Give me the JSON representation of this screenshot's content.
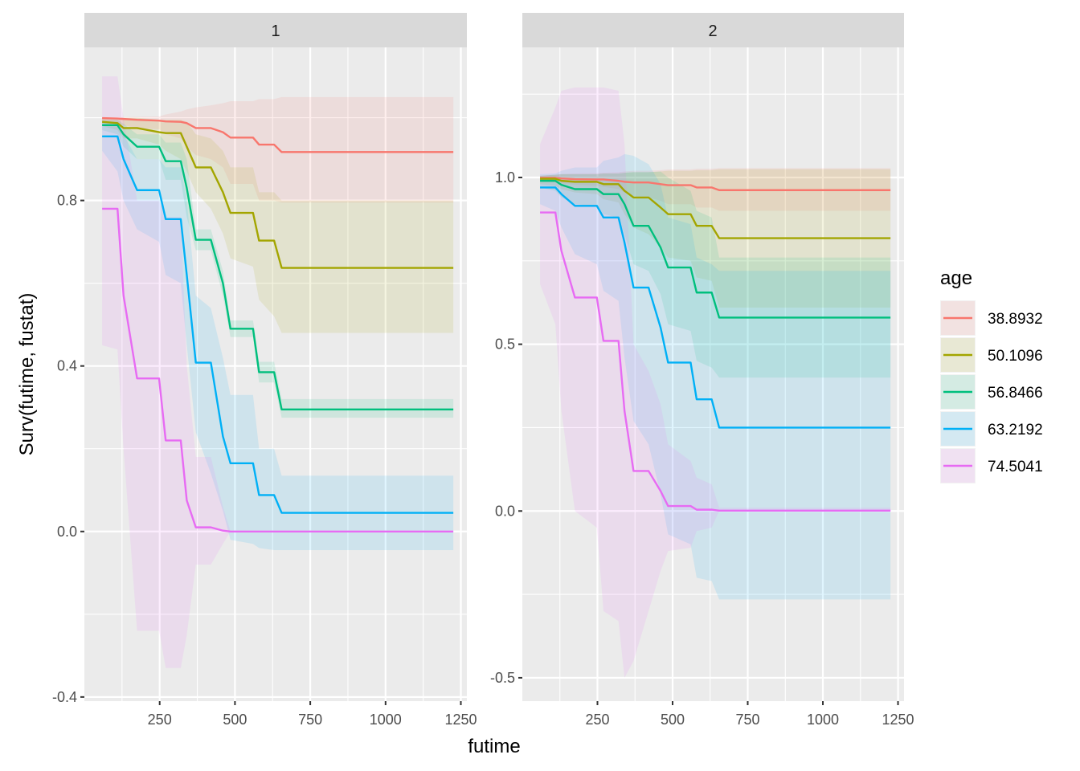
{
  "chart_data": {
    "type": "line",
    "subtype": "faceted step survival curves with confidence ribbons",
    "xlabel": "futime",
    "ylabel": "Surv(futime, fustat)",
    "grid": true,
    "legend": {
      "title": "age",
      "placement": "right",
      "entries": [
        "38.8932",
        "50.1096",
        "56.8466",
        "63.2192",
        "74.5041"
      ]
    },
    "series_colors": [
      "#F8766D",
      "#A3A500",
      "#00BF7D",
      "#00B0F6",
      "#E76BF3"
    ],
    "time": [
      59,
      110,
      130,
      175,
      248,
      270,
      320,
      340,
      370,
      420,
      460,
      485,
      560,
      580,
      630,
      655,
      1225
    ],
    "panels": [
      {
        "strip_label": "1",
        "xlim": [
          0,
          1270
        ],
        "ylim": [
          -0.41,
          1.17
        ],
        "x_ticks": [
          250,
          500,
          750,
          1000,
          1250
        ],
        "x_tick_labels": [
          "250",
          "500",
          "750",
          "1000",
          "1250"
        ],
        "y_ticks": [
          -0.4,
          0.0,
          0.4,
          0.8
        ],
        "y_tick_labels": [
          "-0.4",
          "0.0",
          "0.4",
          "0.8"
        ],
        "y_minor": [
          -0.2,
          0.2,
          0.6,
          1.0
        ],
        "series": [
          {
            "name": "38.8932",
            "values": [
              0.999,
              0.998,
              0.997,
              0.995,
              0.993,
              0.991,
              0.99,
              0.987,
              0.975,
              0.975,
              0.965,
              0.952,
              0.952,
              0.935,
              0.935,
              0.917,
              0.917
            ],
            "lower": [
              0.99,
              0.985,
              0.982,
              0.975,
              0.972,
              0.96,
              0.95,
              0.93,
              0.91,
              0.9,
              0.88,
              0.84,
              0.84,
              0.8,
              0.8,
              0.795,
              0.795
            ],
            "upper": [
              1.0,
              1.0,
              1.001,
              1.002,
              1.003,
              1.008,
              1.015,
              1.02,
              1.025,
              1.03,
              1.035,
              1.04,
              1.04,
              1.045,
              1.045,
              1.05,
              1.05
            ]
          },
          {
            "name": "50.1096",
            "values": [
              0.99,
              0.987,
              0.975,
              0.975,
              0.965,
              0.963,
              0.963,
              0.93,
              0.88,
              0.88,
              0.82,
              0.77,
              0.77,
              0.703,
              0.703,
              0.637,
              0.637
            ],
            "lower": [
              0.98,
              0.97,
              0.95,
              0.95,
              0.935,
              0.92,
              0.9,
              0.87,
              0.82,
              0.78,
              0.72,
              0.66,
              0.64,
              0.56,
              0.52,
              0.48,
              0.48
            ],
            "upper": [
              1.0,
              1.0,
              1.0,
              1.0,
              0.995,
              0.995,
              0.995,
              0.99,
              0.96,
              0.95,
              0.92,
              0.88,
              0.88,
              0.82,
              0.82,
              0.8,
              0.8
            ]
          },
          {
            "name": "56.8466",
            "values": [
              0.982,
              0.982,
              0.96,
              0.93,
              0.93,
              0.895,
              0.895,
              0.83,
              0.705,
              0.705,
              0.6,
              0.49,
              0.49,
              0.385,
              0.385,
              0.295,
              0.295
            ],
            "lower": [
              0.97,
              0.96,
              0.93,
              0.9,
              0.9,
              0.85,
              0.85,
              0.76,
              0.68,
              0.68,
              0.57,
              0.47,
              0.47,
              0.36,
              0.36,
              0.275,
              0.275
            ],
            "upper": [
              0.995,
              0.995,
              0.985,
              0.96,
              0.96,
              0.94,
              0.94,
              0.9,
              0.73,
              0.73,
              0.63,
              0.51,
              0.51,
              0.41,
              0.41,
              0.32,
              0.32
            ]
          },
          {
            "name": "63.2192",
            "values": [
              0.955,
              0.955,
              0.9,
              0.825,
              0.825,
              0.755,
              0.755,
              0.62,
              0.408,
              0.408,
              0.23,
              0.165,
              0.165,
              0.088,
              0.088,
              0.045,
              0.045
            ],
            "lower": [
              0.92,
              0.87,
              0.8,
              0.73,
              0.7,
              0.62,
              0.6,
              0.45,
              0.24,
              0.14,
              0.05,
              -0.02,
              -0.03,
              -0.04,
              -0.045,
              -0.045,
              -0.045
            ],
            "upper": [
              0.99,
              0.99,
              0.96,
              0.9,
              0.9,
              0.88,
              0.88,
              0.8,
              0.57,
              0.54,
              0.42,
              0.33,
              0.33,
              0.2,
              0.2,
              0.135,
              0.135
            ]
          },
          {
            "name": "74.5041",
            "values": [
              0.78,
              0.78,
              0.57,
              0.37,
              0.37,
              0.22,
              0.22,
              0.075,
              0.01,
              0.01,
              0.002,
              0.0,
              0.0,
              0.0,
              0.0,
              0.0,
              0.0
            ],
            "lower": [
              0.45,
              0.44,
              0.2,
              -0.24,
              -0.24,
              -0.33,
              -0.33,
              -0.25,
              -0.08,
              -0.08,
              -0.03,
              0.0,
              0.0,
              0.0,
              0.0,
              0.0,
              0.0
            ],
            "upper": [
              1.1,
              1.1,
              1.0,
              0.8,
              0.8,
              0.76,
              0.76,
              0.4,
              0.18,
              0.18,
              0.06,
              0.0,
              0.0,
              0.0,
              0.0,
              0.0,
              0.0
            ]
          }
        ]
      },
      {
        "strip_label": "2",
        "xlim": [
          0,
          1270
        ],
        "ylim": [
          -0.57,
          1.39
        ],
        "x_ticks": [
          250,
          500,
          750,
          1000,
          1250
        ],
        "x_tick_labels": [
          "250",
          "500",
          "750",
          "1000",
          "1250"
        ],
        "y_ticks": [
          -0.5,
          0.0,
          0.5,
          1.0
        ],
        "y_tick_labels": [
          "-0.5",
          "0.0",
          "0.5",
          "1.0"
        ],
        "y_minor": [
          -0.25,
          0.25,
          0.75,
          1.25
        ],
        "series": [
          {
            "name": "38.8932",
            "values": [
              0.999,
              0.999,
              0.997,
              0.995,
              0.994,
              0.994,
              0.99,
              0.987,
              0.985,
              0.985,
              0.98,
              0.977,
              0.977,
              0.97,
              0.97,
              0.962,
              0.962
            ],
            "lower": [
              0.99,
              0.985,
              0.982,
              0.978,
              0.975,
              0.972,
              0.965,
              0.955,
              0.945,
              0.94,
              0.93,
              0.92,
              0.92,
              0.91,
              0.91,
              0.9,
              0.9
            ],
            "upper": [
              1.005,
              1.008,
              1.01,
              1.012,
              1.013,
              1.014,
              1.016,
              1.018,
              1.02,
              1.02,
              1.022,
              1.024,
              1.024,
              1.026,
              1.026,
              1.028,
              1.028
            ]
          },
          {
            "name": "50.1096",
            "values": [
              0.996,
              0.996,
              0.99,
              0.987,
              0.987,
              0.98,
              0.98,
              0.96,
              0.94,
              0.94,
              0.91,
              0.89,
              0.89,
              0.855,
              0.855,
              0.818,
              0.818
            ],
            "lower": [
              0.98,
              0.975,
              0.965,
              0.955,
              0.95,
              0.935,
              0.925,
              0.89,
              0.85,
              0.83,
              0.79,
              0.76,
              0.75,
              0.7,
              0.69,
              0.61,
              0.61
            ],
            "upper": [
              1.005,
              1.008,
              1.01,
              1.01,
              1.01,
              1.012,
              1.012,
              1.014,
              1.016,
              1.016,
              1.018,
              1.02,
              1.02,
              1.022,
              1.022,
              1.025,
              1.025
            ]
          },
          {
            "name": "56.8466",
            "values": [
              0.99,
              0.99,
              0.978,
              0.965,
              0.965,
              0.95,
              0.95,
              0.92,
              0.855,
              0.855,
              0.79,
              0.73,
              0.73,
              0.655,
              0.655,
              0.58,
              0.58
            ],
            "lower": [
              0.97,
              0.96,
              0.94,
              0.92,
              0.915,
              0.89,
              0.88,
              0.83,
              0.74,
              0.72,
              0.65,
              0.56,
              0.54,
              0.45,
              0.43,
              0.4,
              0.4
            ],
            "upper": [
              1.005,
              1.008,
              1.01,
              1.01,
              1.01,
              1.012,
              1.012,
              1.014,
              1.016,
              1.016,
              1.018,
              1.0,
              0.96,
              0.9,
              0.88,
              0.76,
              0.76
            ]
          },
          {
            "name": "63.2192",
            "values": [
              0.97,
              0.97,
              0.95,
              0.915,
              0.915,
              0.88,
              0.88,
              0.805,
              0.67,
              0.67,
              0.55,
              0.445,
              0.445,
              0.335,
              0.335,
              0.25,
              0.25
            ],
            "lower": [
              0.92,
              0.9,
              0.85,
              0.77,
              0.74,
              0.66,
              0.63,
              0.46,
              0.27,
              0.2,
              0.05,
              -0.07,
              -0.1,
              -0.2,
              -0.21,
              -0.265,
              -0.265
            ],
            "upper": [
              1.01,
              1.012,
              1.02,
              1.03,
              1.03,
              1.05,
              1.06,
              1.07,
              1.065,
              1.04,
              0.98,
              0.88,
              0.86,
              0.76,
              0.74,
              0.72,
              0.72
            ]
          },
          {
            "name": "74.5041",
            "values": [
              0.895,
              0.895,
              0.78,
              0.64,
              0.64,
              0.51,
              0.51,
              0.3,
              0.12,
              0.12,
              0.06,
              0.015,
              0.015,
              0.004,
              0.004,
              0.001,
              0.001
            ],
            "lower": [
              0.68,
              0.56,
              0.3,
              0.0,
              -0.05,
              -0.3,
              -0.33,
              -0.5,
              -0.45,
              -0.3,
              -0.18,
              -0.12,
              -0.11,
              -0.06,
              -0.05,
              0.0,
              0.0
            ],
            "upper": [
              1.1,
              1.21,
              1.26,
              1.27,
              1.27,
              1.27,
              1.26,
              1.1,
              0.5,
              0.42,
              0.32,
              0.2,
              0.15,
              0.1,
              0.08,
              0.01,
              0.01
            ]
          }
        ]
      }
    ]
  }
}
